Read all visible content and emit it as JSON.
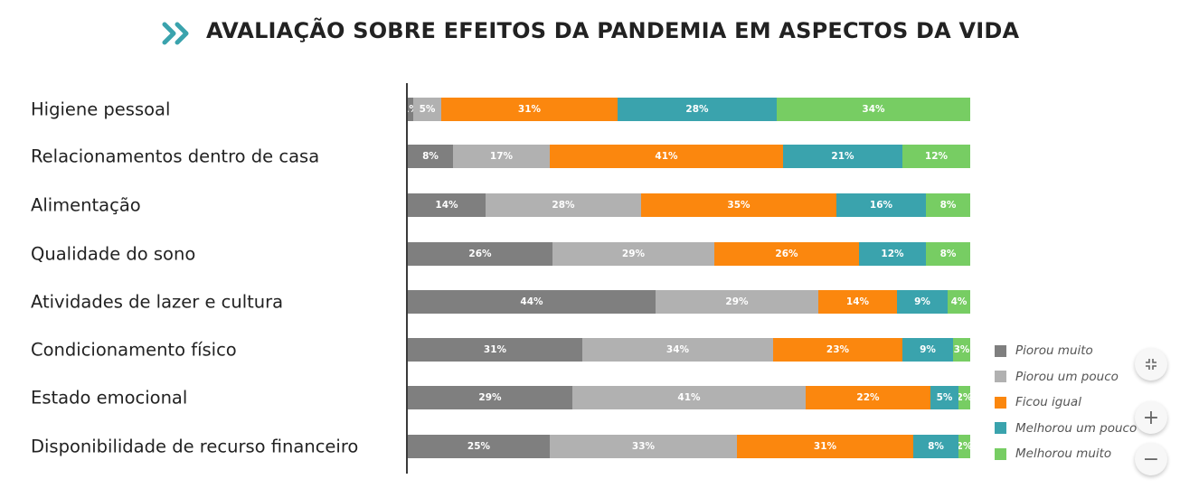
{
  "header": {
    "title": "AVALIAÇÃO SOBRE EFEITOS DA PANDEMIA EM ASPECTOS DA VIDA",
    "icon": "double-chevron-right-icon",
    "icon_color": "#3aa3ad"
  },
  "controls": {
    "fit_icon": "collapse-arrows-icon",
    "zoom_in_label": "+",
    "zoom_out_label": "−"
  },
  "chart_data": {
    "type": "bar",
    "orientation": "horizontal",
    "stacked": true,
    "percent_stacked": true,
    "title": "AVALIAÇÃO SOBRE EFEITOS DA PANDEMIA EM ASPECTOS DA VIDA",
    "xlabel": "",
    "ylabel": "",
    "xlim": [
      0,
      100
    ],
    "grid": false,
    "legend_position": "right-bottom",
    "categories": [
      "Higiene pessoal",
      "Relacionamentos dentro de casa",
      "Alimentação",
      "Qualidade do sono",
      "Atividades de lazer e cultura",
      "Condicionamento físico",
      "Estado emocional",
      "Disponibilidade de recurso financeiro"
    ],
    "series": [
      {
        "name": "Piorou muito",
        "color": "#7f7f7f",
        "values": [
          1,
          8,
          14,
          26,
          44,
          31,
          29,
          25
        ]
      },
      {
        "name": "Piorou um pouco",
        "color": "#b1b1b1",
        "values": [
          5,
          17,
          28,
          29,
          29,
          34,
          41,
          33
        ]
      },
      {
        "name": "Ficou igual",
        "color": "#fb870e",
        "values": [
          31,
          41,
          35,
          26,
          14,
          23,
          22,
          31
        ]
      },
      {
        "name": "Melhorou um pouco",
        "color": "#3aa3ad",
        "values": [
          28,
          21,
          16,
          12,
          9,
          9,
          5,
          8
        ]
      },
      {
        "name": "Melhorou muito",
        "color": "#77cd63",
        "values": [
          34,
          12,
          8,
          8,
          4,
          3,
          2,
          2
        ]
      }
    ],
    "value_suffix": "%"
  }
}
